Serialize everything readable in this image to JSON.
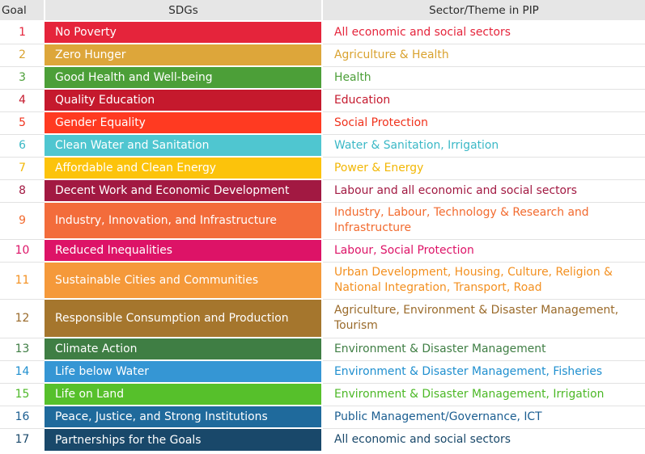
{
  "header": {
    "goal": "Goal",
    "sdgs": "SDGs",
    "sector": "Sector/Theme in PIP"
  },
  "rows": [
    {
      "goal": "1",
      "sdg": "No Poverty",
      "sector": "All economic and social sectors",
      "color": "#e5243b",
      "text_color": "#e5243b"
    },
    {
      "goal": "2",
      "sdg": "Zero Hunger",
      "sector": "Agriculture & Health",
      "color": "#dda63a",
      "text_color": "#d9a22f"
    },
    {
      "goal": "3",
      "sdg": "Good Health and Well-being",
      "sector": "Health",
      "color": "#4c9f38",
      "text_color": "#4c9f38"
    },
    {
      "goal": "4",
      "sdg": "Quality Education",
      "sector": "Education",
      "color": "#c5192d",
      "text_color": "#c5192d"
    },
    {
      "goal": "5",
      "sdg": "Gender Equality",
      "sector": "Social Protection",
      "color": "#ff3a21",
      "text_color": "#f0321c"
    },
    {
      "goal": "6",
      "sdg": "Clean Water and Sanitation",
      "sector": "Water & Sanitation, Irrigation",
      "color": "#4fc6d0",
      "text_color": "#3ab8c6"
    },
    {
      "goal": "7",
      "sdg": "Affordable and Clean Energy",
      "sector": "Power & Energy",
      "color": "#fcc30b",
      "text_color": "#f2b705"
    },
    {
      "goal": "8",
      "sdg": "Decent Work and Economic Development",
      "sector": "Labour and all economic and social sectors",
      "color": "#a21942",
      "text_color": "#a21942"
    },
    {
      "goal": "9",
      "sdg": "Industry, Innovation, and Infrastructure",
      "sector": "Industry, Labour, Technology & Research and Infrastructure",
      "color": "#f36c3b",
      "text_color": "#f26a2e"
    },
    {
      "goal": "10",
      "sdg": "Reduced Inequalities",
      "sector": "Labour, Social Protection",
      "color": "#dd1367",
      "text_color": "#dd1367"
    },
    {
      "goal": "11",
      "sdg": "Sustainable Cities and Communities",
      "sector": "Urban Development, Housing, Culture, Religion & National Integration, Transport, Road",
      "color": "#f5993a",
      "text_color": "#f39020"
    },
    {
      "goal": "12",
      "sdg": "Responsible Consumption and Production",
      "sector": "Agriculture, Environment & Disaster Management, Tourism",
      "color": "#a5762d",
      "text_color": "#9a6a2a"
    },
    {
      "goal": "13",
      "sdg": "Climate Action",
      "sector": "Environment & Disaster Management",
      "color": "#3f7e44",
      "text_color": "#3f7e44"
    },
    {
      "goal": "14",
      "sdg": "Life below Water",
      "sector": "Environment & Disaster Management, Fisheries",
      "color": "#3596d4",
      "text_color": "#1f8fcf"
    },
    {
      "goal": "15",
      "sdg": "Life on Land",
      "sector": "Environment & Disaster Management, Irrigation",
      "color": "#56c02b",
      "text_color": "#4cb826"
    },
    {
      "goal": "16",
      "sdg": "Peace, Justice, and Strong Institutions",
      "sector": "Public Management/Governance, ICT",
      "color": "#1f6a9c",
      "text_color": "#1b5e91"
    },
    {
      "goal": "17",
      "sdg": "Partnerships for the Goals",
      "sector": "All economic and social sectors",
      "color": "#19486a",
      "text_color": "#19486a"
    }
  ]
}
